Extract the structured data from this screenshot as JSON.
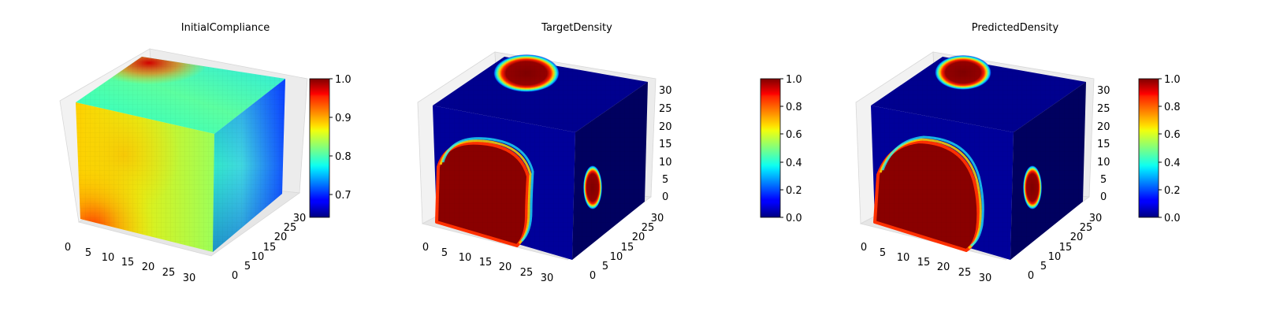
{
  "figure": {
    "panels": [
      {
        "title": "InitialCompliance",
        "colorbar": {
          "range": [
            0.64,
            1.0
          ],
          "ticks": [
            "0.7",
            "0.8",
            "0.9",
            "1.0"
          ],
          "tick_values": [
            0.7,
            0.8,
            0.9,
            1.0
          ]
        }
      },
      {
        "title": "TargetDensity",
        "colorbar": {
          "range": [
            0.0,
            1.0
          ],
          "ticks": [
            "0.0",
            "0.2",
            "0.4",
            "0.6",
            "0.8",
            "1.0"
          ],
          "tick_values": [
            0.0,
            0.2,
            0.4,
            0.6,
            0.8,
            1.0
          ]
        }
      },
      {
        "title": "PredictedDensity",
        "colorbar": {
          "range": [
            0.0,
            1.0
          ],
          "ticks": [
            "0.0",
            "0.2",
            "0.4",
            "0.6",
            "0.8",
            "1.0"
          ],
          "tick_values": [
            0.0,
            0.2,
            0.4,
            0.6,
            0.8,
            1.0
          ]
        }
      }
    ]
  },
  "chart_data": [
    {
      "type": "heatmap",
      "title": "InitialCompliance",
      "render": "3d voxel cube",
      "colormap": "jet",
      "x_ticks": [
        "0",
        "5",
        "10",
        "15",
        "20",
        "25",
        "30"
      ],
      "y_ticks": [
        "0",
        "5",
        "10",
        "15",
        "20",
        "25",
        "30"
      ],
      "z_ticks": [],
      "xlim": [
        0,
        32
      ],
      "ylim": [
        0,
        32
      ],
      "zlim": [
        0,
        32
      ],
      "value_range": [
        0.64,
        1.0
      ],
      "colorbar_ticks": [
        0.7,
        0.8,
        0.9,
        1.0
      ],
      "front_face": {
        "min": 0.8,
        "max": 0.98,
        "note": "yellow-green, red hotspot bottom-left"
      },
      "top_face": {
        "min": 0.72,
        "max": 0.98,
        "note": "cyan, red hotspot at back-left corner"
      },
      "side_face": {
        "min": 0.66,
        "max": 0.85,
        "note": "cyan-green fading to blue at right"
      }
    },
    {
      "type": "heatmap",
      "title": "TargetDensity",
      "render": "3d voxel cube",
      "colormap": "jet",
      "x_ticks": [
        "0",
        "5",
        "10",
        "15",
        "20",
        "25",
        "30"
      ],
      "y_ticks": [
        "0",
        "5",
        "10",
        "15",
        "20",
        "25",
        "30"
      ],
      "z_ticks": [
        "0",
        "5",
        "10",
        "15",
        "20",
        "25",
        "30"
      ],
      "xlim": [
        0,
        32
      ],
      "ylim": [
        0,
        32
      ],
      "zlim": [
        0,
        32
      ],
      "value_range": [
        0.0,
        1.0
      ],
      "colorbar_ticks": [
        0.0,
        0.2,
        0.4,
        0.6,
        0.8,
        1.0
      ],
      "background": 0.05,
      "regions": [
        {
          "face": "front",
          "shape": "large solid block, lower-left",
          "value": 1.0
        },
        {
          "face": "top",
          "shape": "ellipse at back",
          "value": 1.0
        },
        {
          "face": "side",
          "shape": "small ellipse",
          "value": 1.0
        }
      ]
    },
    {
      "type": "heatmap",
      "title": "PredictedDensity",
      "render": "3d voxel cube",
      "colormap": "jet",
      "x_ticks": [
        "0",
        "5",
        "10",
        "15",
        "20",
        "25",
        "30"
      ],
      "y_ticks": [
        "0",
        "5",
        "10",
        "15",
        "20",
        "25",
        "30"
      ],
      "z_ticks": [
        "0",
        "5",
        "10",
        "15",
        "20",
        "25",
        "30"
      ],
      "xlim": [
        0,
        32
      ],
      "ylim": [
        0,
        32
      ],
      "zlim": [
        0,
        32
      ],
      "value_range": [
        0.0,
        1.0
      ],
      "colorbar_ticks": [
        0.0,
        0.2,
        0.4,
        0.6,
        0.8,
        1.0
      ],
      "background": 0.05,
      "regions": [
        {
          "face": "front",
          "shape": "large solid block, lower-left",
          "value": 1.0
        },
        {
          "face": "top",
          "shape": "ellipse at back",
          "value": 1.0
        },
        {
          "face": "side",
          "shape": "small ellipse",
          "value": 1.0
        }
      ]
    }
  ]
}
